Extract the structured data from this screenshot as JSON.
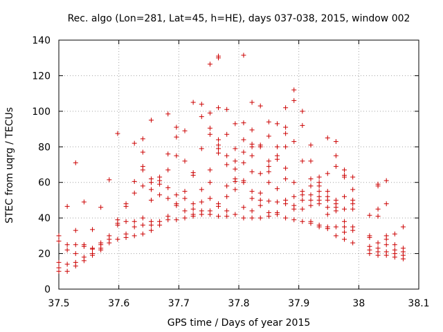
{
  "chart_data": {
    "type": "scatter",
    "title": "Rec. algo (Lon=281, Lat=45, h=HE), days 037-038, 2015, window 002",
    "xlabel": "GPS time / Days of year 2015",
    "ylabel": "STEC from uqrg / TECUs",
    "xlim": [
      37.5,
      38.1
    ],
    "ylim": [
      0,
      140
    ],
    "xticks": [
      37.5,
      37.6,
      37.7,
      37.8,
      37.9,
      38,
      38.1
    ],
    "xtick_labels": [
      "37.5",
      "37.6",
      "37.7",
      "37.8",
      "37.9",
      "38",
      "38.1"
    ],
    "yticks": [
      0,
      20,
      40,
      60,
      80,
      100,
      120,
      140
    ],
    "ytick_labels": [
      "0",
      "20",
      "40",
      "60",
      "80",
      "100",
      "120",
      "140"
    ],
    "grid": true,
    "marker": "+",
    "color": "#cc0000",
    "series": [
      {
        "name": "STEC",
        "points": [
          [
            37.5,
            30
          ],
          [
            37.5,
            27
          ],
          [
            37.5,
            15
          ],
          [
            37.5,
            12
          ],
          [
            37.5,
            10
          ],
          [
            37.514,
            46.5
          ],
          [
            37.514,
            25
          ],
          [
            37.514,
            22
          ],
          [
            37.514,
            14
          ],
          [
            37.514,
            10
          ],
          [
            37.528,
            71
          ],
          [
            37.528,
            33
          ],
          [
            37.528,
            25
          ],
          [
            37.528,
            20
          ],
          [
            37.528,
            15
          ],
          [
            37.528,
            13
          ],
          [
            37.542,
            49
          ],
          [
            37.542,
            25
          ],
          [
            37.542,
            24
          ],
          [
            37.542,
            18
          ],
          [
            37.542,
            16
          ],
          [
            37.556,
            33.5
          ],
          [
            37.556,
            23
          ],
          [
            37.556,
            22.5
          ],
          [
            37.556,
            20
          ],
          [
            37.556,
            19
          ],
          [
            37.57,
            46
          ],
          [
            37.57,
            26
          ],
          [
            37.57,
            25
          ],
          [
            37.57,
            23
          ],
          [
            37.57,
            22
          ],
          [
            37.584,
            61.5
          ],
          [
            37.584,
            30
          ],
          [
            37.584,
            28
          ],
          [
            37.584,
            26
          ],
          [
            37.598,
            87.5
          ],
          [
            37.598,
            39
          ],
          [
            37.598,
            37
          ],
          [
            37.598,
            36
          ],
          [
            37.598,
            28
          ],
          [
            37.612,
            48
          ],
          [
            37.612,
            46.5
          ],
          [
            37.612,
            38
          ],
          [
            37.612,
            31
          ],
          [
            37.612,
            29
          ],
          [
            37.626,
            82
          ],
          [
            37.626,
            60.5
          ],
          [
            37.626,
            54
          ],
          [
            37.626,
            38
          ],
          [
            37.626,
            35
          ],
          [
            37.626,
            30
          ],
          [
            37.64,
            84.5
          ],
          [
            37.64,
            77
          ],
          [
            37.64,
            69
          ],
          [
            37.64,
            67
          ],
          [
            37.64,
            58
          ],
          [
            37.64,
            40
          ],
          [
            37.64,
            36
          ],
          [
            37.64,
            31
          ],
          [
            37.654,
            95
          ],
          [
            37.654,
            62
          ],
          [
            37.654,
            60
          ],
          [
            37.654,
            56
          ],
          [
            37.654,
            50
          ],
          [
            37.654,
            38
          ],
          [
            37.654,
            36
          ],
          [
            37.654,
            33
          ],
          [
            37.668,
            63
          ],
          [
            37.668,
            61
          ],
          [
            37.668,
            59
          ],
          [
            37.668,
            53
          ],
          [
            37.668,
            38
          ],
          [
            37.668,
            36
          ],
          [
            37.682,
            98.5
          ],
          [
            37.682,
            76
          ],
          [
            37.682,
            67
          ],
          [
            37.682,
            57
          ],
          [
            37.682,
            51
          ],
          [
            37.682,
            41
          ],
          [
            37.682,
            39
          ],
          [
            37.696,
            91
          ],
          [
            37.696,
            85.5
          ],
          [
            37.696,
            75
          ],
          [
            37.696,
            53
          ],
          [
            37.696,
            48
          ],
          [
            37.696,
            47
          ],
          [
            37.696,
            39
          ],
          [
            37.71,
            89
          ],
          [
            37.71,
            72
          ],
          [
            37.71,
            55
          ],
          [
            37.71,
            51
          ],
          [
            37.71,
            44
          ],
          [
            37.71,
            40
          ],
          [
            37.724,
            105
          ],
          [
            37.724,
            65.5
          ],
          [
            37.724,
            64
          ],
          [
            37.724,
            48
          ],
          [
            37.724,
            45
          ],
          [
            37.724,
            42
          ],
          [
            37.724,
            41
          ],
          [
            37.738,
            104
          ],
          [
            37.738,
            97
          ],
          [
            37.738,
            79
          ],
          [
            37.738,
            56
          ],
          [
            37.738,
            49
          ],
          [
            37.738,
            44
          ],
          [
            37.738,
            42
          ],
          [
            37.752,
            126.5
          ],
          [
            37.752,
            99
          ],
          [
            37.752,
            90.5
          ],
          [
            37.752,
            87
          ],
          [
            37.752,
            67
          ],
          [
            37.752,
            60
          ],
          [
            37.752,
            51
          ],
          [
            37.752,
            44
          ],
          [
            37.752,
            42
          ],
          [
            37.766,
            131
          ],
          [
            37.766,
            130
          ],
          [
            37.766,
            102
          ],
          [
            37.766,
            84
          ],
          [
            37.766,
            81
          ],
          [
            37.766,
            79
          ],
          [
            37.766,
            76.5
          ],
          [
            37.766,
            48
          ],
          [
            37.766,
            46.5
          ],
          [
            37.766,
            41
          ],
          [
            37.78,
            101
          ],
          [
            37.78,
            87
          ],
          [
            37.78,
            75
          ],
          [
            37.78,
            70
          ],
          [
            37.78,
            58
          ],
          [
            37.78,
            52
          ],
          [
            37.78,
            44
          ],
          [
            37.78,
            41
          ],
          [
            37.794,
            93
          ],
          [
            37.794,
            79
          ],
          [
            37.794,
            72
          ],
          [
            37.794,
            67.5
          ],
          [
            37.794,
            62
          ],
          [
            37.794,
            60.5
          ],
          [
            37.794,
            56
          ],
          [
            37.794,
            42
          ],
          [
            37.808,
            131.5
          ],
          [
            37.808,
            93.5
          ],
          [
            37.808,
            84
          ],
          [
            37.808,
            77
          ],
          [
            37.808,
            71
          ],
          [
            37.808,
            61
          ],
          [
            37.808,
            60
          ],
          [
            37.808,
            46
          ],
          [
            37.808,
            40
          ],
          [
            37.822,
            105
          ],
          [
            37.822,
            89.5
          ],
          [
            37.822,
            81.5
          ],
          [
            37.822,
            80
          ],
          [
            37.822,
            75
          ],
          [
            37.822,
            66
          ],
          [
            37.822,
            55
          ],
          [
            37.822,
            51
          ],
          [
            37.822,
            44
          ],
          [
            37.822,
            40
          ],
          [
            37.836,
            103
          ],
          [
            37.836,
            81
          ],
          [
            37.836,
            80
          ],
          [
            37.836,
            65
          ],
          [
            37.836,
            54
          ],
          [
            37.836,
            50
          ],
          [
            37.836,
            47
          ],
          [
            37.836,
            40
          ],
          [
            37.85,
            94
          ],
          [
            37.85,
            86
          ],
          [
            37.85,
            72
          ],
          [
            37.85,
            69
          ],
          [
            37.85,
            66
          ],
          [
            37.85,
            60
          ],
          [
            37.85,
            49.5
          ],
          [
            37.85,
            43
          ],
          [
            37.85,
            41
          ],
          [
            37.864,
            93
          ],
          [
            37.864,
            80
          ],
          [
            37.864,
            75
          ],
          [
            37.864,
            73
          ],
          [
            37.864,
            56.5
          ],
          [
            37.864,
            49
          ],
          [
            37.864,
            43
          ],
          [
            37.864,
            42
          ],
          [
            37.878,
            102
          ],
          [
            37.878,
            91
          ],
          [
            37.878,
            87.5
          ],
          [
            37.878,
            80
          ],
          [
            37.878,
            68
          ],
          [
            37.878,
            62
          ],
          [
            37.878,
            50
          ],
          [
            37.878,
            48
          ],
          [
            37.878,
            40
          ],
          [
            37.892,
            112
          ],
          [
            37.892,
            106
          ],
          [
            37.892,
            83
          ],
          [
            37.892,
            60
          ],
          [
            37.892,
            52
          ],
          [
            37.892,
            47
          ],
          [
            37.892,
            45
          ],
          [
            37.892,
            39
          ],
          [
            37.906,
            100
          ],
          [
            37.906,
            92
          ],
          [
            37.906,
            72
          ],
          [
            37.906,
            55
          ],
          [
            37.906,
            53
          ],
          [
            37.906,
            50
          ],
          [
            37.906,
            45
          ],
          [
            37.906,
            38
          ],
          [
            37.92,
            81
          ],
          [
            37.92,
            72
          ],
          [
            37.92,
            62
          ],
          [
            37.92,
            58
          ],
          [
            37.92,
            53
          ],
          [
            37.92,
            50
          ],
          [
            37.92,
            47
          ],
          [
            37.92,
            38
          ],
          [
            37.92,
            37
          ],
          [
            37.934,
            63
          ],
          [
            37.934,
            60
          ],
          [
            37.934,
            58
          ],
          [
            37.934,
            55
          ],
          [
            37.934,
            52
          ],
          [
            37.934,
            50
          ],
          [
            37.934,
            48
          ],
          [
            37.934,
            36
          ],
          [
            37.934,
            35
          ],
          [
            37.948,
            85
          ],
          [
            37.948,
            65
          ],
          [
            37.948,
            55
          ],
          [
            37.948,
            52
          ],
          [
            37.948,
            50
          ],
          [
            37.948,
            46
          ],
          [
            37.948,
            42
          ],
          [
            37.948,
            35
          ],
          [
            37.948,
            34
          ],
          [
            37.962,
            83
          ],
          [
            37.962,
            75
          ],
          [
            37.962,
            69
          ],
          [
            37.962,
            50
          ],
          [
            37.962,
            48
          ],
          [
            37.962,
            46
          ],
          [
            37.962,
            44
          ],
          [
            37.962,
            35
          ],
          [
            37.962,
            30
          ],
          [
            37.976,
            67
          ],
          [
            37.976,
            64
          ],
          [
            37.976,
            63
          ],
          [
            37.976,
            52
          ],
          [
            37.976,
            45
          ],
          [
            37.976,
            38
          ],
          [
            37.976,
            35
          ],
          [
            37.976,
            32
          ],
          [
            37.976,
            28
          ],
          [
            37.99,
            63
          ],
          [
            37.99,
            56
          ],
          [
            37.99,
            50
          ],
          [
            37.99,
            48
          ],
          [
            37.99,
            45
          ],
          [
            37.99,
            35
          ],
          [
            37.99,
            33
          ],
          [
            37.99,
            26
          ],
          [
            38.018,
            41.5
          ],
          [
            38.018,
            30
          ],
          [
            38.018,
            29
          ],
          [
            38.018,
            24
          ],
          [
            38.018,
            22
          ],
          [
            38.018,
            20
          ],
          [
            38.032,
            59
          ],
          [
            38.032,
            58
          ],
          [
            38.032,
            45
          ],
          [
            38.032,
            41
          ],
          [
            38.032,
            26
          ],
          [
            38.032,
            23
          ],
          [
            38.032,
            21
          ],
          [
            38.032,
            19
          ],
          [
            38.046,
            61
          ],
          [
            38.046,
            48
          ],
          [
            38.046,
            30
          ],
          [
            38.046,
            28
          ],
          [
            38.046,
            25
          ],
          [
            38.046,
            21
          ],
          [
            38.046,
            19
          ],
          [
            38.06,
            31
          ],
          [
            38.06,
            25
          ],
          [
            38.06,
            22
          ],
          [
            38.06,
            20
          ],
          [
            38.06,
            18
          ],
          [
            38.074,
            35
          ],
          [
            38.074,
            23
          ],
          [
            38.074,
            21
          ],
          [
            38.074,
            19
          ],
          [
            38.074,
            17
          ]
        ]
      }
    ]
  }
}
